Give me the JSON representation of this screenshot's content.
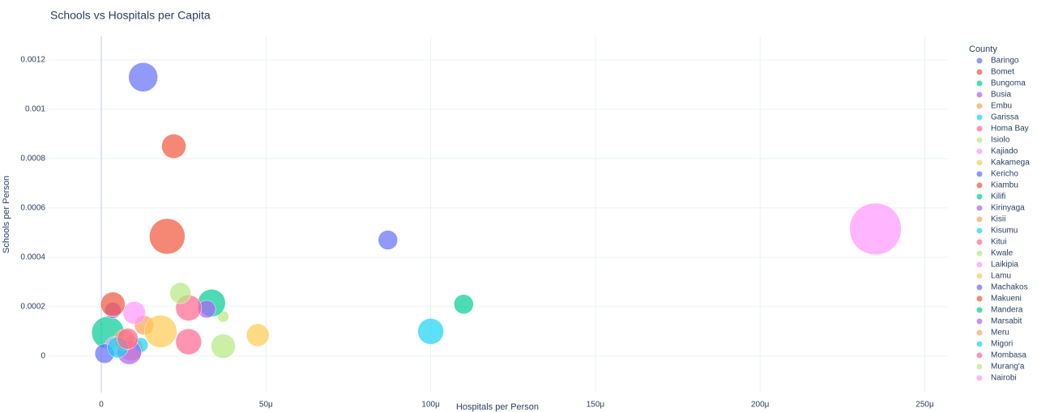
{
  "chart_data": {
    "type": "bubble",
    "title": "Schools vs Hospitals per Capita",
    "x_label": "Hospitals per Person",
    "y_label": "Schools per Person",
    "legend_title": "County",
    "legend_position": "right",
    "grid": true,
    "xlim": [
      -1.6e-05,
      0.000257
    ],
    "ylim": [
      -0.000148,
      0.001295
    ],
    "xticks": [
      0,
      {
        "value": 5e-05,
        "label": "50μ"
      },
      {
        "value": 0.0001,
        "label": "100μ"
      },
      {
        "value": 0.00015,
        "label": "150μ"
      },
      {
        "value": 0.0002,
        "label": "200μ"
      },
      {
        "value": 0.00025,
        "label": "250μ"
      }
    ],
    "yticks": [
      0,
      0.0002,
      0.0004,
      0.0006,
      0.0008,
      0.001,
      0.0012
    ],
    "series": [
      {
        "name": "Baringo",
        "color": "#636efa",
        "x": [
          1.27e-05
        ],
        "values": [
          0.00113
        ],
        "sizes": [
          36
        ]
      },
      {
        "name": "Bomet",
        "color": "#EF553B",
        "x": [
          2.2e-05
        ],
        "values": [
          0.00085
        ],
        "sizes": [
          30
        ]
      },
      {
        "name": "Bungoma",
        "color": "#00cc96",
        "x": [
          2e-06
        ],
        "values": [
          9.5e-05
        ],
        "sizes": [
          40
        ]
      },
      {
        "name": "Busia",
        "color": "#ab63fa",
        "x": [
          3.5e-06
        ],
        "values": [
          0.000185
        ],
        "sizes": [
          20
        ]
      },
      {
        "name": "Embu",
        "color": "#FFA15A",
        "x": [
          1.3e-05
        ],
        "values": [
          0.000125
        ],
        "sizes": [
          24
        ]
      },
      {
        "name": "Garissa",
        "color": "#19d3f3",
        "x": [
          0.0001
        ],
        "values": [
          0.0001
        ],
        "sizes": [
          32
        ]
      },
      {
        "name": "Homa Bay",
        "color": "#FF6692",
        "x": [
          2.65e-05
        ],
        "values": [
          5.8e-05
        ],
        "sizes": [
          32
        ]
      },
      {
        "name": "Isiolo",
        "color": "#B6E880",
        "x": [
          3.7e-05
        ],
        "values": [
          0.00016
        ],
        "sizes": [
          14
        ]
      },
      {
        "name": "Kajiado",
        "color": "#FF97FF",
        "x": [
          1e-05
        ],
        "values": [
          0.000175
        ],
        "sizes": [
          28
        ]
      },
      {
        "name": "Kakamega",
        "color": "#FECB52",
        "x": [
          1.8e-05
        ],
        "values": [
          0.0001
        ],
        "sizes": [
          40
        ]
      },
      {
        "name": "Kericho",
        "color": "#636efa",
        "x": [
          8.7e-05
        ],
        "values": [
          0.00047
        ],
        "sizes": [
          24
        ]
      },
      {
        "name": "Kiambu",
        "color": "#EF553B",
        "x": [
          2e-05
        ],
        "values": [
          0.000485
        ],
        "sizes": [
          44
        ]
      },
      {
        "name": "Kilifi",
        "color": "#00cc96",
        "x": [
          3.35e-05
        ],
        "values": [
          0.000215
        ],
        "sizes": [
          34
        ]
      },
      {
        "name": "Kirinyaga",
        "color": "#ab63fa",
        "x": [
          3.2e-05
        ],
        "values": [
          0.00019
        ],
        "sizes": [
          22
        ]
      },
      {
        "name": "Kisii",
        "color": "#FFA15A",
        "x": [
          9e-06
        ],
        "values": [
          3e-05
        ],
        "sizes": [
          30
        ]
      },
      {
        "name": "Kisumu",
        "color": "#19d3f3",
        "x": [
          1.2e-05
        ],
        "values": [
          4.5e-05
        ],
        "sizes": [
          18
        ]
      },
      {
        "name": "Kitui",
        "color": "#FF6692",
        "x": [
          2.65e-05
        ],
        "values": [
          0.000195
        ],
        "sizes": [
          32
        ]
      },
      {
        "name": "Kwale",
        "color": "#B6E880",
        "x": [
          2.4e-05
        ],
        "values": [
          0.000255
        ],
        "sizes": [
          26
        ]
      },
      {
        "name": "Laikipia",
        "color": "#FF97FF",
        "x": [
          4e-06
        ],
        "values": [
          4e-05
        ],
        "sizes": [
          24
        ]
      },
      {
        "name": "Lamu",
        "color": "#FECB52",
        "x": [
          4.75e-05
        ],
        "values": [
          8.5e-05
        ],
        "sizes": [
          28
        ]
      },
      {
        "name": "Machakos",
        "color": "#636efa",
        "x": [
          1e-06
        ],
        "values": [
          1e-05
        ],
        "sizes": [
          24
        ]
      },
      {
        "name": "Makueni",
        "color": "#EF553B",
        "x": [
          3.5e-06
        ],
        "values": [
          0.00021
        ],
        "sizes": [
          30
        ]
      },
      {
        "name": "Mandera",
        "color": "#00cc96",
        "x": [
          0.00011
        ],
        "values": [
          0.00021
        ],
        "sizes": [
          24
        ]
      },
      {
        "name": "Marsabit",
        "color": "#ab63fa",
        "x": [
          8.5e-06
        ],
        "values": [
          1.5e-05
        ],
        "sizes": [
          30
        ]
      },
      {
        "name": "Meru",
        "color": "#FFA15A",
        "x": [
          7e-06
        ],
        "values": [
          6.5e-05
        ],
        "sizes": [
          26
        ]
      },
      {
        "name": "Migori",
        "color": "#19d3f3",
        "x": [
          5e-06
        ],
        "values": [
          3.5e-05
        ],
        "sizes": [
          26
        ]
      },
      {
        "name": "Mombasa",
        "color": "#FF6692",
        "x": [
          8e-06
        ],
        "values": [
          7e-05
        ],
        "sizes": [
          26
        ]
      },
      {
        "name": "Murang'a",
        "color": "#B6E880",
        "x": [
          3.7e-05
        ],
        "values": [
          4e-05
        ],
        "sizes": [
          30
        ]
      },
      {
        "name": "Nairobi",
        "color": "#FF97FF",
        "x": [
          0.000235
        ],
        "values": [
          0.000515
        ],
        "sizes": [
          64
        ]
      }
    ]
  }
}
